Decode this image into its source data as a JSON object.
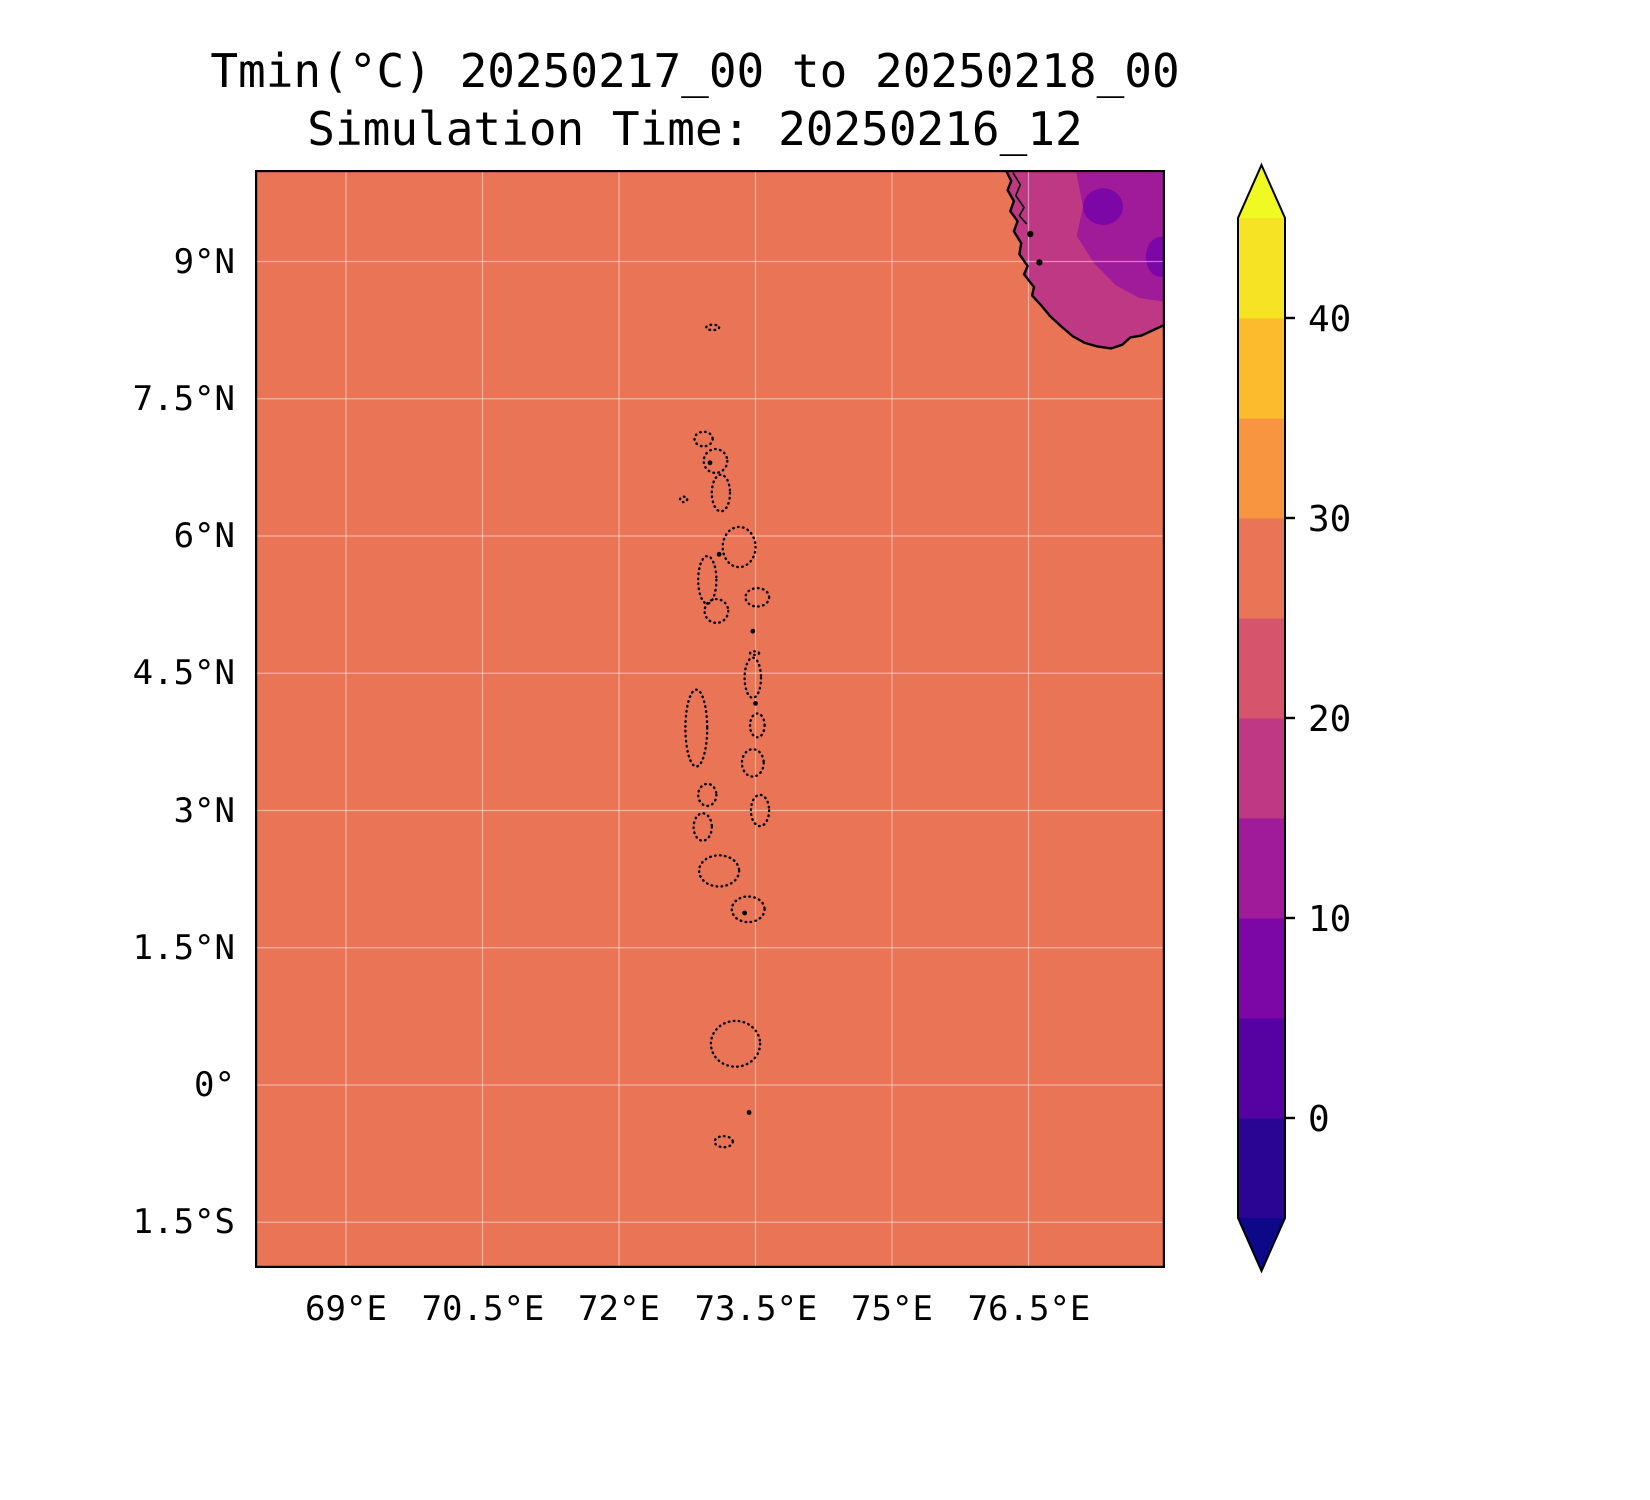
{
  "chart_data": {
    "type": "heatmap",
    "title": "Tmin(°C) 20250217_00 to 20250218_00",
    "subtitle": "Simulation Time: 20250216_12",
    "variable": "Tmin",
    "units": "°C",
    "valid_period": "20250217_00 to 20250218_00",
    "simulation_time": "20250216_12",
    "lon_range": [
      68,
      78
    ],
    "lat_range": [
      -2,
      10
    ],
    "grid": true,
    "x_ticks": [
      "69°E",
      "70.5°E",
      "72°E",
      "73.5°E",
      "75°E",
      "76.5°E"
    ],
    "x_tick_values": [
      69,
      70.5,
      72,
      73.5,
      75,
      76.5
    ],
    "y_ticks": [
      "9°N",
      "7.5°N",
      "6°N",
      "4.5°N",
      "3°N",
      "1.5°N",
      "0°",
      "1.5°S"
    ],
    "y_tick_values": [
      9,
      7.5,
      6,
      4.5,
      3,
      1.5,
      0,
      -1.5
    ],
    "sea_value_band_c": "25-30",
    "land_value_bands_c": [
      "15-20",
      "10-15",
      "5-10"
    ],
    "colors": {
      "sea": "#e97456",
      "land_base": "#be3884",
      "land_cool": "#a01b9a",
      "land_cold": "#7c07a6",
      "coastline": "#000000",
      "gridline": "rgba(255,255,255,0.45)",
      "plot_border": "#000000"
    },
    "colorbar": {
      "orientation": "vertical",
      "extend": "both",
      "levels": [
        -5,
        0,
        5,
        10,
        15,
        20,
        25,
        30,
        35,
        40,
        45
      ],
      "ticks": [
        0,
        10,
        20,
        30,
        40
      ],
      "tick_labels": [
        "0",
        "10",
        "20",
        "30",
        "40"
      ],
      "band_colors": [
        "#2a0593",
        "#5602a2",
        "#7c07a6",
        "#a01b9a",
        "#be3884",
        "#d6556d",
        "#e97456",
        "#f79540",
        "#fcba2d",
        "#f6e323"
      ],
      "under_color": "#0d0887",
      "over_color": "#f0f921"
    },
    "coastline": [
      [
        76.25,
        10.0
      ],
      [
        76.31,
        9.88
      ],
      [
        76.27,
        9.78
      ],
      [
        76.34,
        9.66
      ],
      [
        76.3,
        9.55
      ],
      [
        76.38,
        9.44
      ],
      [
        76.34,
        9.33
      ],
      [
        76.42,
        9.2
      ],
      [
        76.4,
        9.08
      ],
      [
        76.49,
        8.95
      ],
      [
        76.45,
        8.86
      ],
      [
        76.56,
        8.72
      ],
      [
        76.54,
        8.63
      ],
      [
        76.64,
        8.52
      ],
      [
        76.74,
        8.4
      ],
      [
        76.86,
        8.29
      ],
      [
        76.99,
        8.18
      ],
      [
        77.12,
        8.11
      ],
      [
        77.26,
        8.07
      ],
      [
        77.41,
        8.05
      ],
      [
        77.53,
        8.09
      ],
      [
        77.62,
        8.17
      ],
      [
        77.74,
        8.19
      ],
      [
        77.87,
        8.25
      ],
      [
        78.0,
        8.31
      ]
    ],
    "cool_polygon": [
      [
        77.02,
        10.0
      ],
      [
        77.1,
        9.6
      ],
      [
        77.03,
        9.28
      ],
      [
        77.22,
        8.98
      ],
      [
        77.46,
        8.74
      ],
      [
        77.72,
        8.6
      ],
      [
        78.0,
        8.56
      ],
      [
        78.0,
        10.0
      ]
    ],
    "cold_ellipses": [
      {
        "lon": 77.32,
        "lat": 9.6,
        "rx": 0.22,
        "ry": 0.2
      },
      {
        "lon": 77.95,
        "lat": 9.05,
        "rx": 0.16,
        "ry": 0.22
      }
    ],
    "lakes": [
      [
        [
          76.33,
          9.97
        ],
        [
          76.41,
          9.84
        ],
        [
          76.36,
          9.72
        ],
        [
          76.45,
          9.59
        ],
        [
          76.4,
          9.5
        ],
        [
          76.48,
          9.41
        ]
      ]
    ],
    "coast_marks": [
      [
        76.62,
        8.99
      ],
      [
        76.52,
        9.3
      ]
    ],
    "atolls": [
      [
        73.03,
        8.28,
        0.07,
        0.03
      ],
      [
        72.93,
        7.06,
        0.1,
        0.08
      ],
      [
        73.06,
        6.82,
        0.13,
        0.13
      ],
      [
        73.12,
        6.47,
        0.1,
        0.2
      ],
      [
        72.71,
        6.4,
        0.04,
        0.03
      ],
      [
        73.32,
        5.88,
        0.18,
        0.22
      ],
      [
        72.97,
        5.52,
        0.1,
        0.26
      ],
      [
        73.07,
        5.18,
        0.13,
        0.13
      ],
      [
        73.52,
        5.33,
        0.13,
        0.1
      ],
      [
        73.47,
        4.45,
        0.09,
        0.22
      ],
      [
        73.49,
        4.72,
        0.05,
        0.02
      ],
      [
        72.85,
        3.9,
        0.12,
        0.42
      ],
      [
        73.52,
        3.93,
        0.08,
        0.13
      ],
      [
        73.47,
        3.52,
        0.12,
        0.15
      ],
      [
        72.97,
        3.17,
        0.1,
        0.12
      ],
      [
        72.92,
        2.82,
        0.1,
        0.15
      ],
      [
        73.55,
        3.0,
        0.1,
        0.17
      ],
      [
        73.1,
        2.34,
        0.22,
        0.17
      ],
      [
        73.42,
        1.92,
        0.18,
        0.14
      ],
      [
        73.28,
        0.45,
        0.27,
        0.25
      ],
      [
        73.15,
        -0.62,
        0.1,
        0.06
      ]
    ],
    "islands": [
      [
        73.5,
        4.17
      ],
      [
        73.43,
        -0.3
      ],
      [
        73.47,
        4.96
      ],
      [
        73.38,
        1.88
      ],
      [
        73.0,
        6.8
      ],
      [
        73.1,
        5.8
      ]
    ]
  }
}
